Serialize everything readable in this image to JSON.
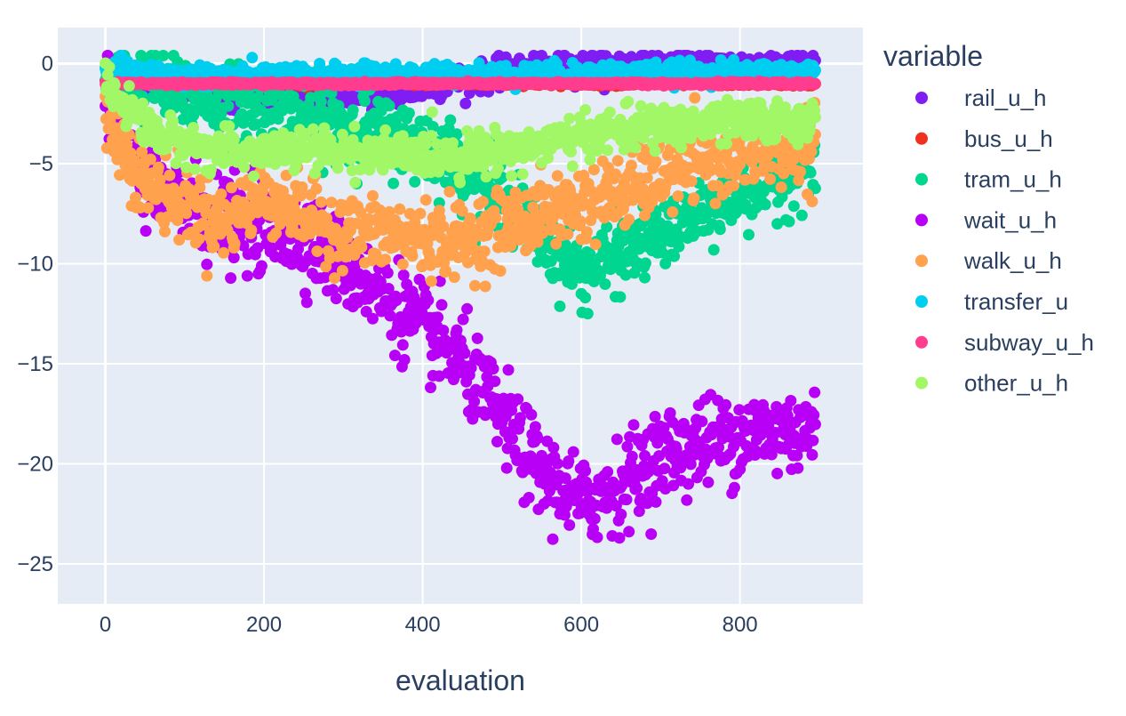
{
  "chart_data": {
    "type": "scatter",
    "xlabel": "evaluation",
    "ylabel": "",
    "xlim": [
      -60,
      955
    ],
    "ylim": [
      -27,
      1.8
    ],
    "xticks": [
      0,
      200,
      400,
      600,
      800
    ],
    "yticks": [
      0,
      -5,
      -10,
      -15,
      -20,
      -25
    ],
    "xtick_labels": [
      "0",
      "200",
      "400",
      "600",
      "800"
    ],
    "ytick_labels": [
      "0",
      "−5",
      "−10",
      "−15",
      "−20",
      "−25"
    ],
    "grid": true,
    "legend": {
      "title": "variable",
      "position": "right"
    },
    "colors": {
      "plot_bg": "#e5ecf6",
      "grid": "#ffffff",
      "text": "#2a3f5f"
    },
    "x_range": [
      0,
      895
    ],
    "series": [
      {
        "name": "rail_u_h",
        "color": "#7f1df3",
        "trend": [
          [
            0,
            -0.8
          ],
          [
            100,
            -1.3
          ],
          [
            250,
            -1.6
          ],
          [
            350,
            -1.6
          ],
          [
            450,
            -0.8
          ],
          [
            550,
            -0.2
          ],
          [
            650,
            -0.1
          ],
          [
            895,
            -0.1
          ]
        ],
        "spread": 0.35
      },
      {
        "name": "bus_u_h",
        "color": "#f0311f",
        "trend": [
          [
            0,
            -0.9
          ],
          [
            100,
            -1.0
          ],
          [
            895,
            -1.0
          ]
        ],
        "spread": 0.05
      },
      {
        "name": "tram_u_h",
        "color": "#00d68f",
        "trend": [
          [
            0,
            -0.5
          ],
          [
            100,
            -1.5
          ],
          [
            250,
            -2.5
          ],
          [
            400,
            -4.0
          ],
          [
            450,
            -5.0
          ],
          [
            520,
            -7.5
          ],
          [
            600,
            -10.5
          ],
          [
            700,
            -8.5
          ],
          [
            800,
            -6.5
          ],
          [
            895,
            -5.0
          ]
        ],
        "spread": 0.9
      },
      {
        "name": "wait_u_h",
        "color": "#b700f5",
        "trend": [
          [
            0,
            -2.0
          ],
          [
            50,
            -6.0
          ],
          [
            150,
            -8.0
          ],
          [
            250,
            -8.5
          ],
          [
            350,
            -11.5
          ],
          [
            450,
            -15.0
          ],
          [
            550,
            -20.5
          ],
          [
            600,
            -22.0
          ],
          [
            650,
            -21.0
          ],
          [
            700,
            -19.5
          ],
          [
            800,
            -18.5
          ],
          [
            895,
            -18.3
          ]
        ],
        "spread": 1.1
      },
      {
        "name": "walk_u_h",
        "color": "#ffa14d",
        "trend": [
          [
            0,
            -2.5
          ],
          [
            50,
            -6.0
          ],
          [
            150,
            -8.0
          ],
          [
            200,
            -6.5
          ],
          [
            300,
            -8.5
          ],
          [
            450,
            -8.8
          ],
          [
            550,
            -7.5
          ],
          [
            650,
            -6.5
          ],
          [
            750,
            -4.8
          ],
          [
            895,
            -4.2
          ]
        ],
        "spread": 0.9
      },
      {
        "name": "transfer_u",
        "color": "#00cef0",
        "trend": [
          [
            0,
            -0.3
          ],
          [
            100,
            -0.6
          ],
          [
            250,
            -0.6
          ],
          [
            895,
            -0.4
          ]
        ],
        "spread": 0.25
      },
      {
        "name": "subway_u_h",
        "color": "#ff3c8e",
        "trend": [
          [
            0,
            -1.0
          ],
          [
            895,
            -1.0
          ]
        ],
        "spread": 0.04
      },
      {
        "name": "other_u_h",
        "color": "#a2f767",
        "trend": [
          [
            0,
            -1.0
          ],
          [
            60,
            -3.5
          ],
          [
            150,
            -4.5
          ],
          [
            250,
            -4.3
          ],
          [
            350,
            -4.5
          ],
          [
            450,
            -4.6
          ],
          [
            550,
            -4.0
          ],
          [
            650,
            -3.3
          ],
          [
            750,
            -3.0
          ],
          [
            895,
            -2.8
          ]
        ],
        "spread": 0.5
      }
    ]
  }
}
